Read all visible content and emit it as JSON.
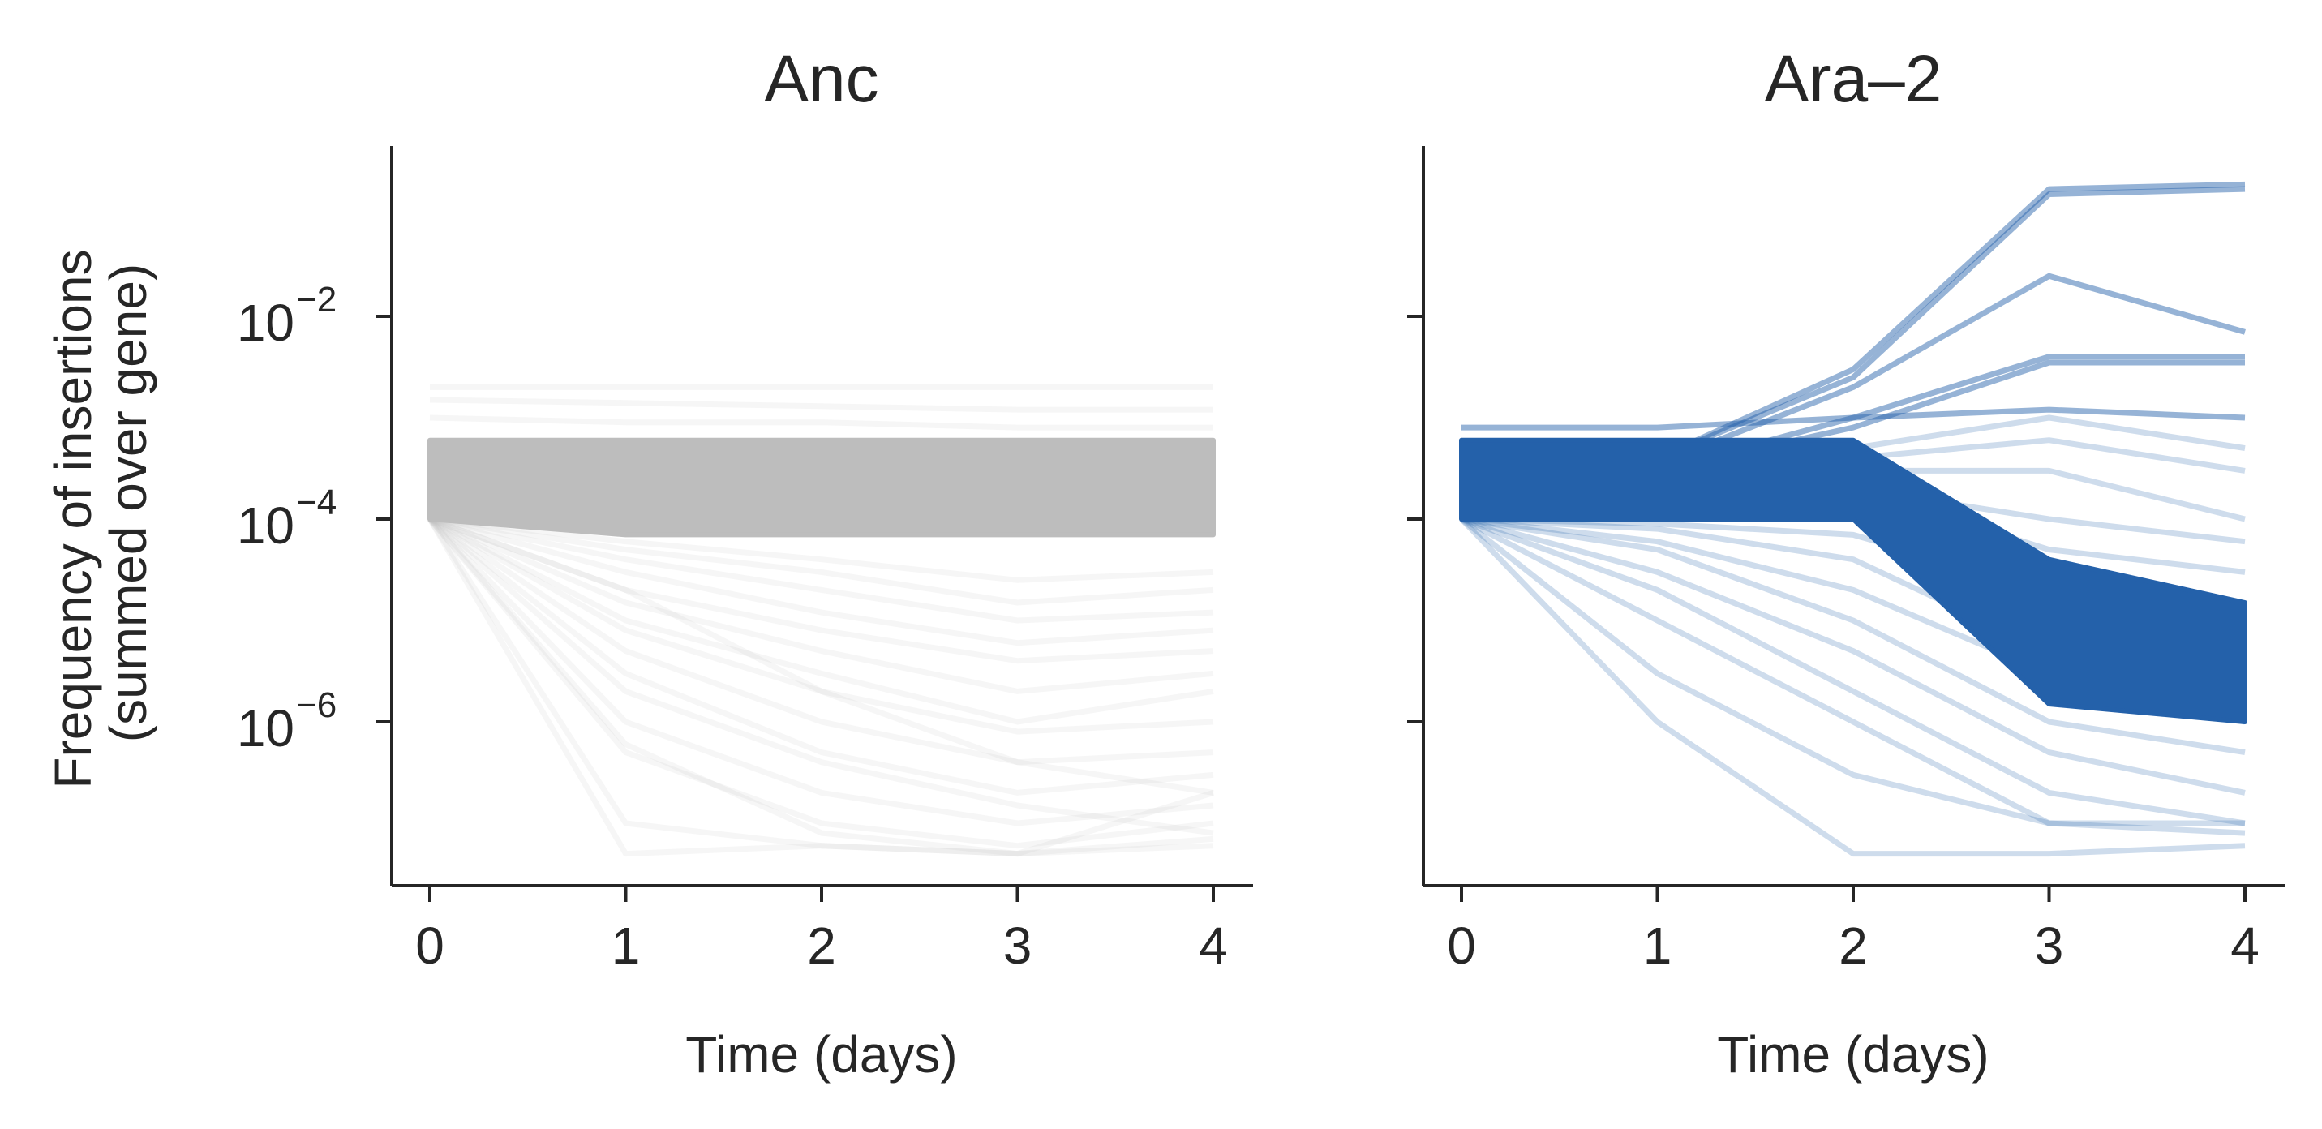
{
  "colors": {
    "anc": "#bdbdbd",
    "ara2": "#2461aa",
    "axis": "#262626"
  },
  "chart_data": [
    {
      "type": "line",
      "title": "Anc",
      "xlabel": "Time (days)",
      "ylabel": "Frequency of insertions",
      "ylabel_line2": "(summed over gene)",
      "x": [
        0,
        1,
        2,
        3,
        4
      ],
      "xticks": [
        "0",
        "1",
        "2",
        "3",
        "4"
      ],
      "yscale": "log",
      "ylim": [
        3e-08,
        0.4
      ],
      "yticks": [
        {
          "base": "10",
          "exp": "−2",
          "value": 0.01
        },
        {
          "base": "10",
          "exp": "−4",
          "value": 0.0001
        },
        {
          "base": "10",
          "exp": "−6",
          "value": 1e-06
        }
      ],
      "grid": false,
      "bulk_band": {
        "x": [
          0,
          1,
          2,
          3,
          4
        ],
        "lower": [
          0.0001,
          7e-05,
          7e-05,
          7e-05,
          7e-05
        ],
        "upper": [
          0.0006,
          0.0006,
          0.0006,
          0.0006,
          0.0006
        ]
      },
      "series": [
        {
          "values": [
            0.002,
            0.002,
            0.002,
            0.002,
            0.002
          ]
        },
        {
          "values": [
            0.0015,
            0.0014,
            0.0013,
            0.0012,
            0.0012
          ]
        },
        {
          "values": [
            0.001,
            0.0009,
            0.0009,
            0.0008,
            0.0008
          ]
        },
        {
          "values": [
            0.0001,
            5e-08,
            6e-08,
            5e-08,
            6e-08
          ]
        },
        {
          "values": [
            0.0001,
            1e-07,
            6e-08,
            5e-08,
            2e-07
          ]
        },
        {
          "values": [
            0.0001,
            5e-07,
            1e-07,
            6e-08,
            1e-07
          ]
        },
        {
          "values": [
            0.0001,
            1e-06,
            2e-07,
            1e-07,
            1.5e-07
          ]
        },
        {
          "values": [
            0.0001,
            3e-06,
            5e-07,
            2e-07,
            3e-07
          ]
        },
        {
          "values": [
            0.0001,
            5e-06,
            1e-06,
            4e-07,
            5e-07
          ]
        },
        {
          "values": [
            0.0001,
            8e-06,
            2e-06,
            8e-07,
            1e-06
          ]
        },
        {
          "values": [
            0.0001,
            1e-05,
            3e-06,
            1e-06,
            2e-06
          ]
        },
        {
          "values": [
            0.0001,
            1.5e-05,
            5e-06,
            2e-06,
            3e-06
          ]
        },
        {
          "values": [
            0.0001,
            2e-05,
            8e-06,
            4e-06,
            5e-06
          ]
        },
        {
          "values": [
            0.0001,
            3e-05,
            1.2e-05,
            6e-06,
            8e-06
          ]
        },
        {
          "values": [
            0.0001,
            4e-05,
            2e-05,
            1e-05,
            1.2e-05
          ]
        },
        {
          "values": [
            0.0001,
            5e-05,
            3e-05,
            1.5e-05,
            2e-05
          ]
        },
        {
          "values": [
            0.0001,
            6e-05,
            4e-05,
            2.5e-05,
            3e-05
          ]
        },
        {
          "values": [
            0.0001,
            2e-06,
            4e-07,
            1.5e-07,
            8e-08
          ]
        },
        {
          "values": [
            0.0001,
            6e-07,
            8e-08,
            5e-08,
            7e-08
          ]
        },
        {
          "values": [
            0.0001,
            2e-05,
            2e-06,
            4e-07,
            2e-07
          ]
        }
      ]
    },
    {
      "type": "line",
      "title": "Ara–2",
      "xlabel": "Time (days)",
      "x": [
        0,
        1,
        2,
        3,
        4
      ],
      "xticks": [
        "0",
        "1",
        "2",
        "3",
        "4"
      ],
      "yscale": "log",
      "ylim": [
        3e-08,
        0.4
      ],
      "yticks": [
        {
          "value": 0.01
        },
        {
          "value": 0.0001
        },
        {
          "value": 1e-06
        }
      ],
      "grid": false,
      "bulk_band": {
        "x": [
          0,
          1,
          2,
          3,
          4
        ],
        "lower": [
          0.0001,
          0.0001,
          0.0001,
          1.5e-06,
          1e-06
        ],
        "upper": [
          0.0006,
          0.0006,
          0.0006,
          4e-05,
          1.5e-05
        ]
      },
      "series": [
        {
          "values": [
            0.0003,
            0.0004,
            0.003,
            0.18,
            0.2
          ]
        },
        {
          "values": [
            0.0003,
            0.0004,
            0.0025,
            0.16,
            0.18
          ]
        },
        {
          "values": [
            0.0003,
            0.00035,
            0.002,
            0.025,
            0.007
          ]
        },
        {
          "values": [
            0.0003,
            0.0003,
            0.001,
            0.004,
            0.004
          ]
        },
        {
          "values": [
            0.0003,
            0.0003,
            0.0008,
            0.0035,
            0.0035
          ]
        },
        {
          "values": [
            0.0008,
            0.0008,
            0.001,
            0.0012,
            0.001
          ]
        },
        {
          "values": [
            0.0002,
            0.0002,
            0.0005,
            0.001,
            0.0005
          ]
        },
        {
          "values": [
            0.0002,
            0.0002,
            0.0004,
            0.0006,
            0.0003
          ]
        },
        {
          "values": [
            0.0002,
            0.0002,
            0.0003,
            0.0003,
            0.0001
          ]
        },
        {
          "values": [
            0.0002,
            0.0002,
            0.0002,
            0.0001,
            6e-05
          ]
        },
        {
          "values": [
            0.0002,
            0.0002,
            0.0002,
            5e-05,
            3e-05
          ]
        },
        {
          "values": [
            0.0001,
            5e-05,
            1e-05,
            1e-06,
            5e-07
          ]
        },
        {
          "values": [
            0.0001,
            3e-05,
            5e-06,
            5e-07,
            2e-07
          ]
        },
        {
          "values": [
            0.0001,
            2e-05,
            2e-06,
            2e-07,
            1e-07
          ]
        },
        {
          "values": [
            0.0001,
            1e-05,
            1e-06,
            1e-07,
            8e-08
          ]
        },
        {
          "values": [
            0.0001,
            1e-06,
            5e-08,
            5e-08,
            6e-08
          ]
        },
        {
          "values": [
            0.0001,
            8e-05,
            4e-05,
            5e-06,
            2e-06
          ]
        },
        {
          "values": [
            0.0001,
            6e-05,
            2e-05,
            3e-06,
            1e-06
          ]
        },
        {
          "values": [
            0.0001,
            3e-06,
            3e-07,
            1e-07,
            1e-07
          ]
        },
        {
          "values": [
            0.0001,
            9e-05,
            7e-05,
            2e-05,
            1e-05
          ]
        }
      ]
    }
  ]
}
